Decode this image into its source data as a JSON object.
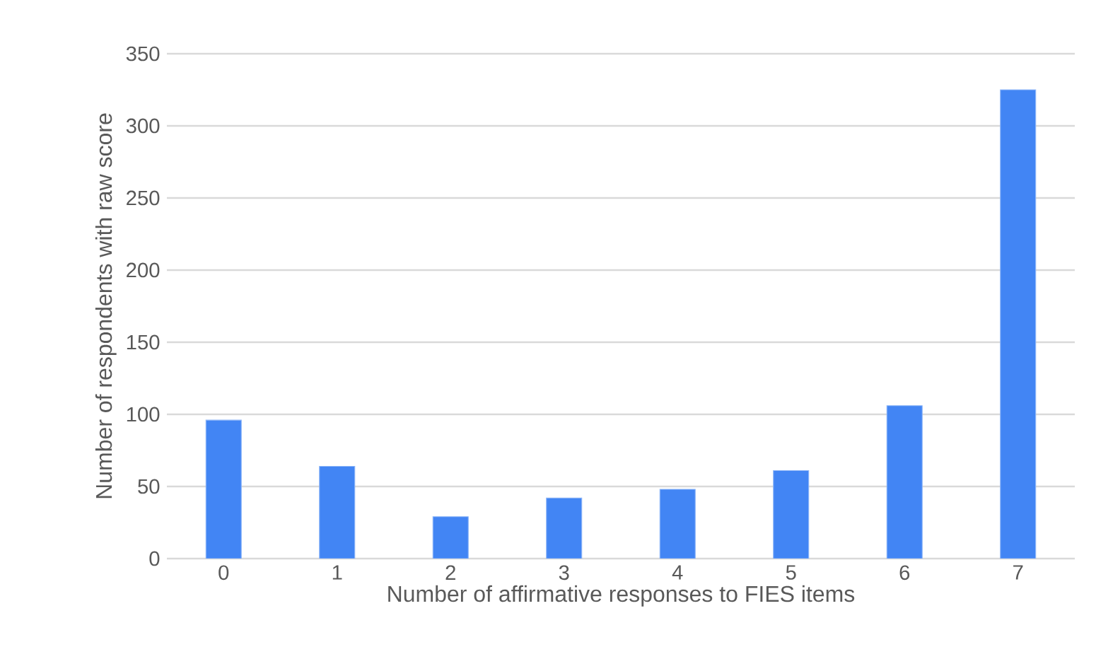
{
  "chart_data": {
    "type": "bar",
    "xlabel": "Number of affirmative responses to FIES items",
    "ylabel": "Number of respondents with raw score",
    "categories": [
      "0",
      "1",
      "2",
      "3",
      "4",
      "5",
      "6",
      "7"
    ],
    "values": [
      96,
      64,
      29,
      42,
      48,
      61,
      106,
      325
    ],
    "color": "#4285f4",
    "ylim": [
      0,
      350
    ],
    "yticks": [
      0,
      50,
      100,
      150,
      200,
      250,
      300,
      350
    ],
    "grid": "y"
  }
}
